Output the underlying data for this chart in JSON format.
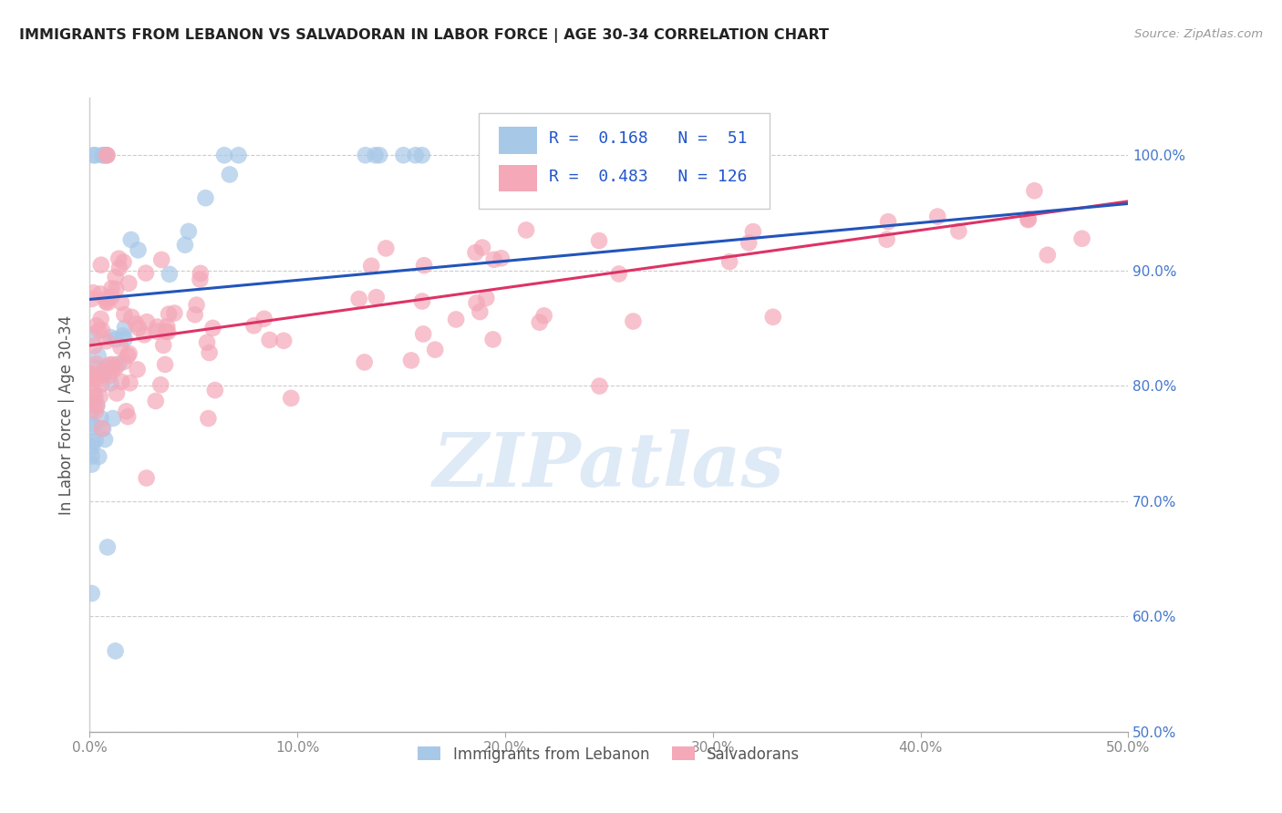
{
  "title": "IMMIGRANTS FROM LEBANON VS SALVADORAN IN LABOR FORCE | AGE 30-34 CORRELATION CHART",
  "source": "Source: ZipAtlas.com",
  "ylabel": "In Labor Force | Age 30-34",
  "right_ytick_values": [
    0.5,
    0.6,
    0.7,
    0.8,
    0.9,
    1.0
  ],
  "right_ytick_labels": [
    "50.0%",
    "60.0%",
    "70.0%",
    "80.0%",
    "90.0%",
    "100.0%"
  ],
  "xtick_values": [
    0.0,
    0.1,
    0.2,
    0.3,
    0.4,
    0.5
  ],
  "xtick_labels": [
    "0.0%",
    "10.0%",
    "20.0%",
    "30.0%",
    "40.0%",
    "50.0%"
  ],
  "legend_r1": "0.168",
  "legend_n1": "51",
  "legend_r2": "0.483",
  "legend_n2": "126",
  "color_lebanon": "#a8c8e8",
  "color_salvadoran": "#f4a8b8",
  "line_color_lebanon": "#2255bb",
  "line_color_salvadoran": "#dd3366",
  "background_color": "#ffffff",
  "watermark": "ZIPatlas",
  "watermark_color": "#c8ddf0",
  "xlim": [
    0.0,
    0.5
  ],
  "ylim": [
    0.5,
    1.05
  ],
  "blue_line_x0": 0.0,
  "blue_line_y0": 0.875,
  "blue_line_x1": 0.5,
  "blue_line_y1": 0.958,
  "pink_line_x0": 0.0,
  "pink_line_y0": 0.835,
  "pink_line_x1": 0.5,
  "pink_line_y1": 0.96
}
